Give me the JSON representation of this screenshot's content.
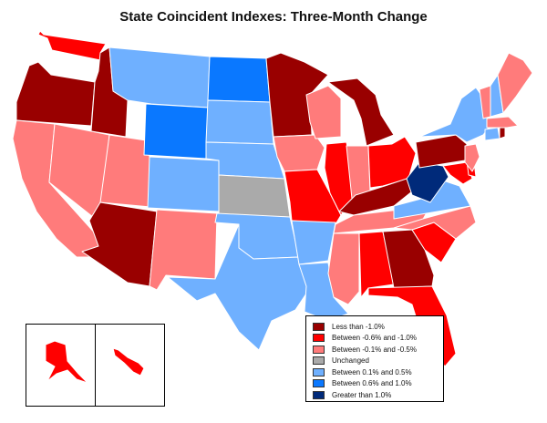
{
  "title": "State Coincident Indexes: Three-Month Change",
  "colors": {
    "lt_m1": "#990000",
    "m06_m1": "#ff0000",
    "m01_m05": "#ff7b7b",
    "unchanged": "#aaaaaa",
    "p01_p05": "#6fb0ff",
    "p06_p1": "#0a78ff",
    "gt_p1": "#002a7a"
  },
  "legend": {
    "items": [
      {
        "key": "lt_m1",
        "label": "Less than -1.0%"
      },
      {
        "key": "m06_m1",
        "label": "Between -0.6% and -1.0%"
      },
      {
        "key": "m01_m05",
        "label": "Between -0.1% and -0.5%"
      },
      {
        "key": "unchanged",
        "label": "Unchanged"
      },
      {
        "key": "p01_p05",
        "label": "Between 0.1% and 0.5%"
      },
      {
        "key": "p06_p1",
        "label": "Between 0.6% and 1.0%"
      },
      {
        "key": "gt_p1",
        "label": "Greater than 1.0%"
      }
    ]
  },
  "states": {
    "WA": "m06_m1",
    "OR": "lt_m1",
    "CA": "m01_m05",
    "ID": "lt_m1",
    "NV": "m01_m05",
    "UT": "m01_m05",
    "AZ": "lt_m1",
    "MT": "p01_p05",
    "WY": "p06_p1",
    "CO": "p01_p05",
    "NM": "m01_m05",
    "ND": "p06_p1",
    "SD": "p01_p05",
    "NE": "p01_p05",
    "KS": "unchanged",
    "OK": "p01_p05",
    "TX": "p01_p05",
    "MN": "lt_m1",
    "IA": "m01_m05",
    "MO": "m06_m1",
    "AR": "p01_p05",
    "LA": "p01_p05",
    "WI": "m01_m05",
    "IL": "m06_m1",
    "MI": "lt_m1",
    "IN": "m01_m05",
    "OH": "m06_m1",
    "KY": "lt_m1",
    "TN": "m01_m05",
    "MS": "m01_m05",
    "AL": "m06_m1",
    "GA": "lt_m1",
    "FL": "m06_m1",
    "SC": "m06_m1",
    "NC": "m01_m05",
    "VA": "p01_p05",
    "WV": "gt_p1",
    "MD": "m06_m1",
    "DE": "m06_m1",
    "PA": "lt_m1",
    "NJ": "m01_m05",
    "NY": "p01_p05",
    "CT": "p01_p05",
    "RI": "lt_m1",
    "MA": "m01_m05",
    "VT": "m01_m05",
    "NH": "p01_p05",
    "ME": "m01_m05",
    "AK": "m06_m1",
    "HI": "m06_m1"
  }
}
